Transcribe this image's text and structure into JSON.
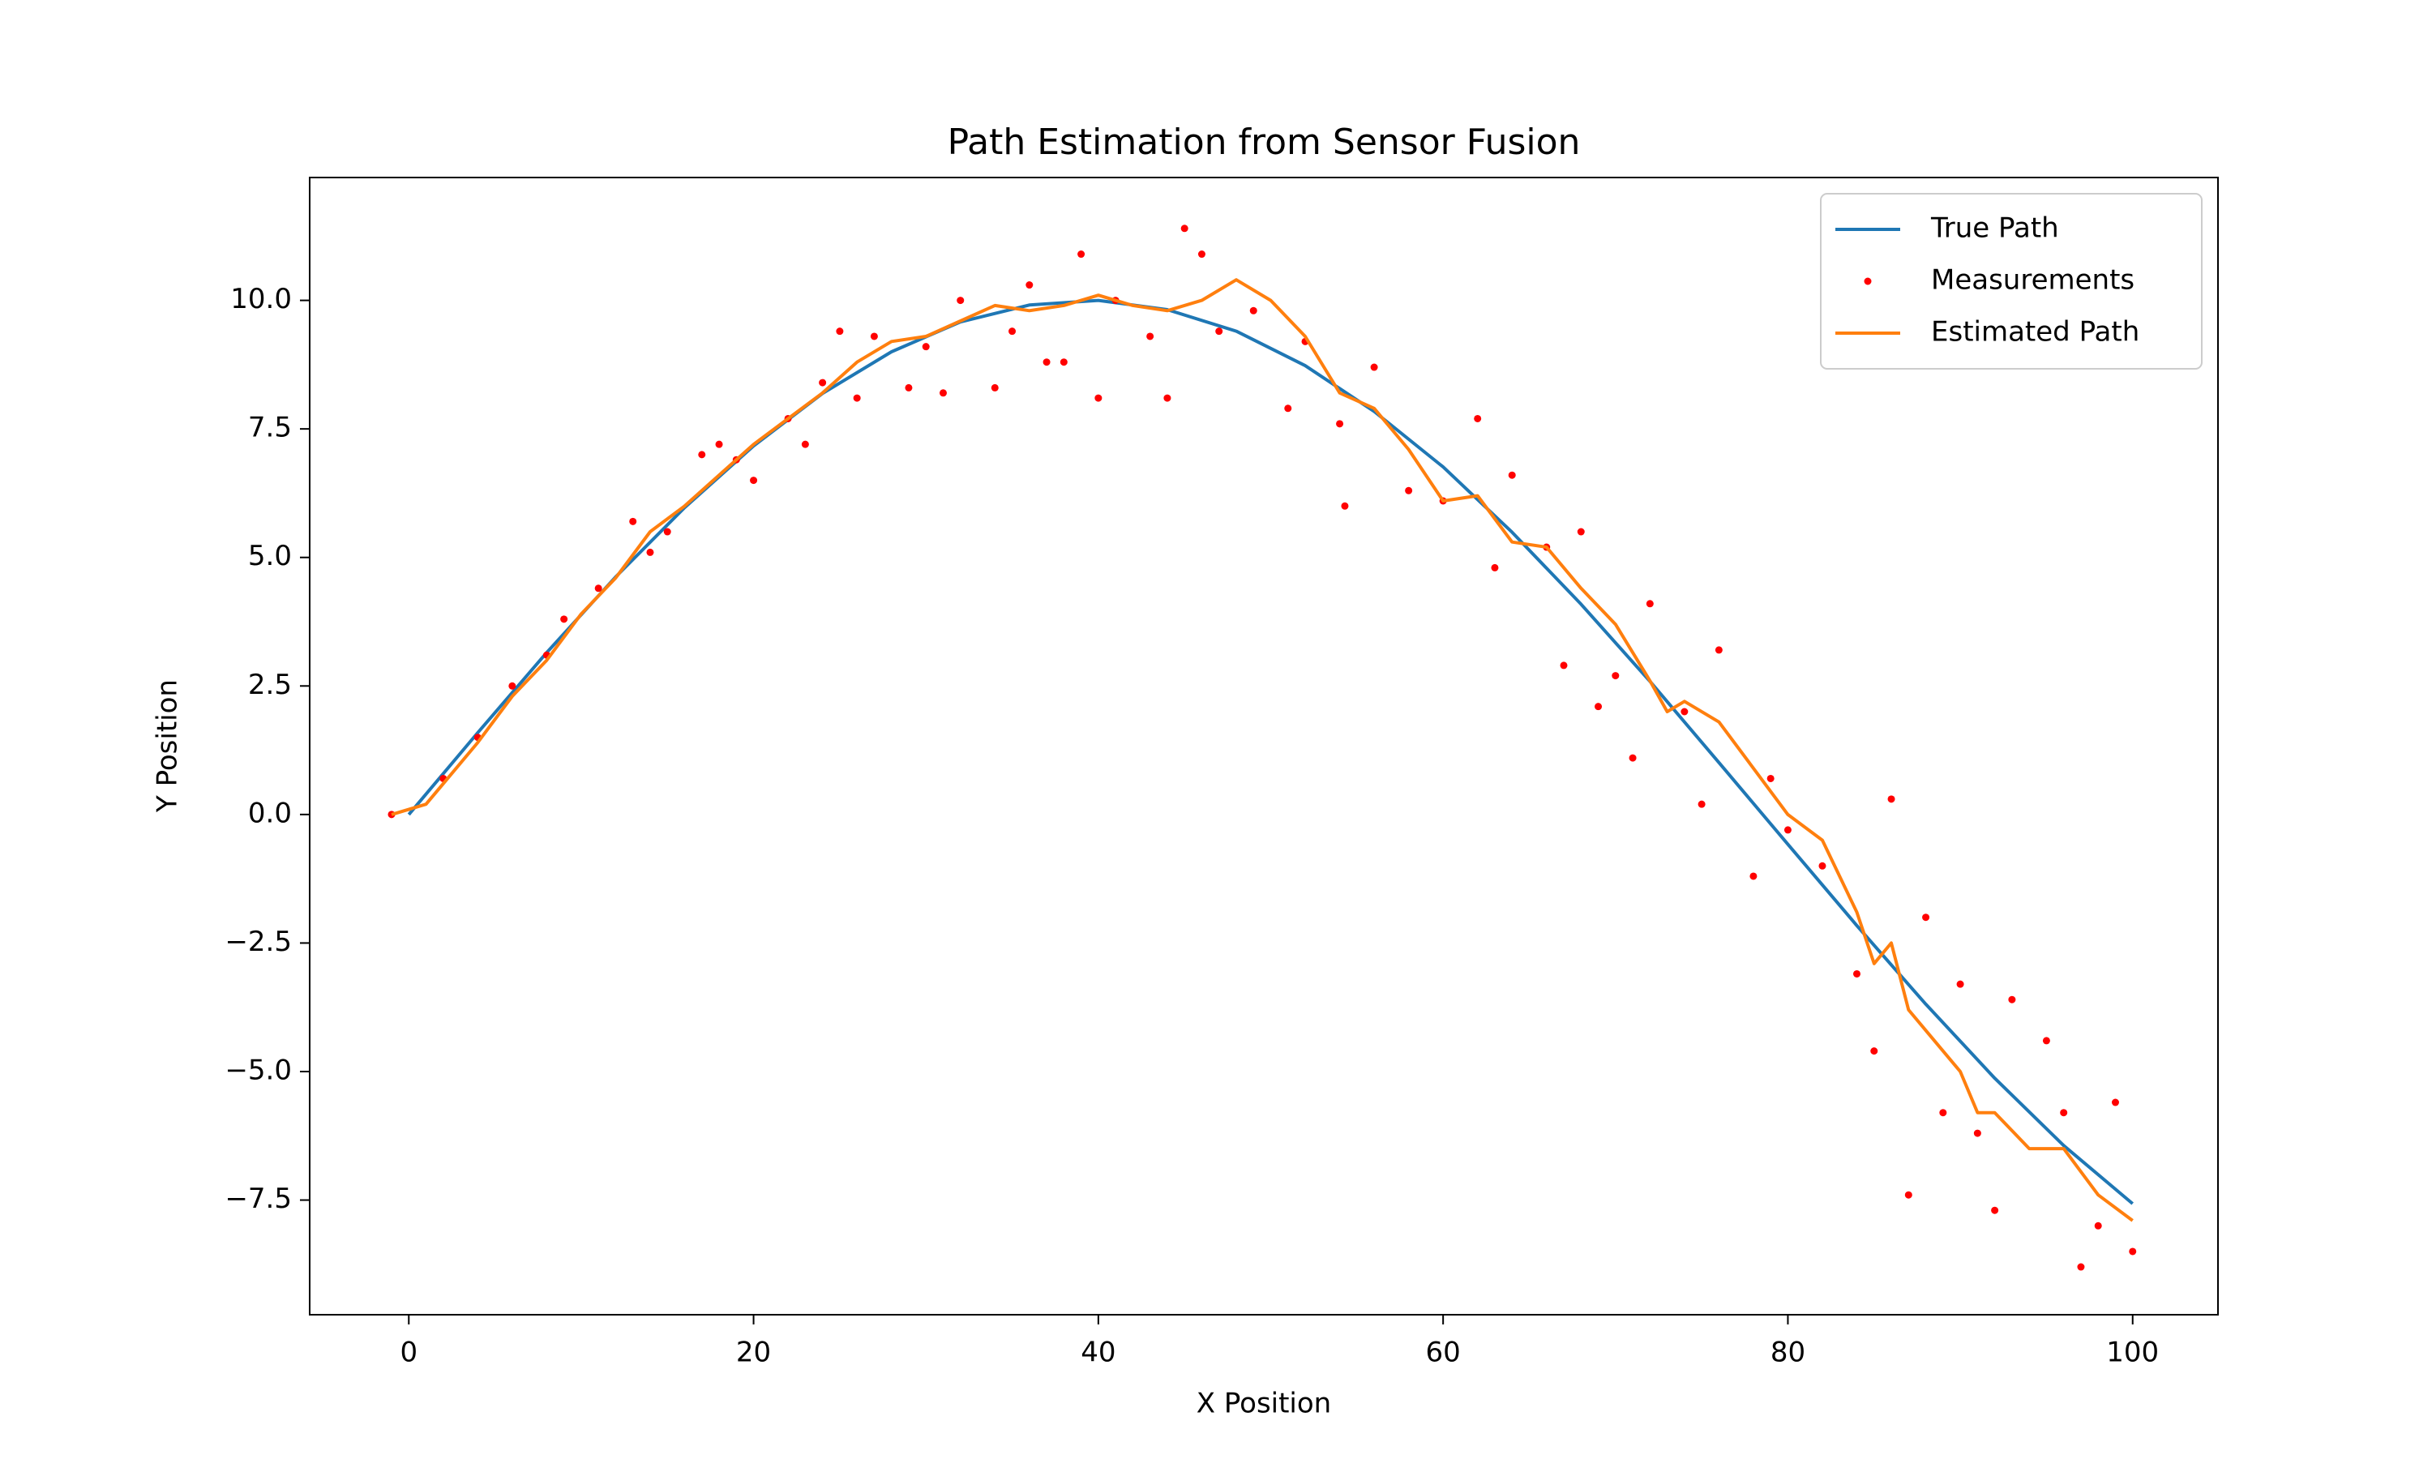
{
  "chart_data": {
    "type": "line",
    "title": "Path Estimation from Sensor Fusion",
    "xlabel": "X Position",
    "ylabel": "Y Position",
    "xlim": [
      -5.75,
      104.95
    ],
    "ylim": [
      -9.73,
      12.39
    ],
    "xticks": [
      0,
      20,
      40,
      60,
      80,
      100
    ],
    "yticks": [
      {
        "value": -7.5,
        "label": "−7.5"
      },
      {
        "value": -5,
        "label": "−5.0"
      },
      {
        "value": -2.5,
        "label": "−2.5"
      },
      {
        "value": 0,
        "label": "0.0"
      },
      2.5,
      {
        "value": 5,
        "label": "5.0"
      },
      7.5,
      {
        "value": 10,
        "label": "10.0"
      }
    ],
    "legend": "upper right",
    "series": [
      {
        "name": "True Path",
        "color": "#1f77b4",
        "style": "line",
        "x": [
          0,
          4,
          8,
          12,
          16,
          20,
          24,
          28,
          32,
          36,
          40,
          44,
          48,
          52,
          56,
          60,
          64,
          68,
          72,
          76,
          80,
          84,
          88,
          92,
          96,
          100
        ],
        "values": [
          0,
          1.59,
          3.15,
          4.62,
          5.97,
          7.17,
          8.19,
          9.0,
          9.58,
          9.91,
          10.0,
          9.82,
          9.4,
          8.73,
          7.84,
          6.76,
          5.49,
          4.09,
          2.59,
          1.01,
          -0.58,
          -2.16,
          -3.69,
          -5.13,
          -6.44,
          -7.57
        ]
      },
      {
        "name": "Measurements",
        "color": "#ff0000",
        "style": "points",
        "x": [
          -1,
          2,
          4,
          6,
          8,
          9,
          11,
          13,
          14,
          15,
          17,
          18,
          19,
          20,
          22,
          23,
          24,
          25,
          26,
          27,
          29,
          30,
          31,
          32,
          34,
          35,
          36,
          37,
          38,
          39,
          40,
          41,
          43,
          44,
          45,
          46,
          47,
          49,
          51,
          52,
          54,
          54.3,
          56,
          58,
          60,
          62,
          63,
          64,
          66,
          67,
          68,
          69,
          70,
          71,
          72,
          74,
          75,
          76,
          78,
          79,
          80,
          82,
          84,
          85,
          86,
          87,
          88,
          89,
          90,
          91,
          92,
          93,
          95,
          96,
          97,
          98,
          99,
          100
        ],
        "values": [
          0,
          0.7,
          1.5,
          2.5,
          3.1,
          3.8,
          4.4,
          5.7,
          5.1,
          5.5,
          7.0,
          7.2,
          6.9,
          6.5,
          7.7,
          7.2,
          8.4,
          9.4,
          8.1,
          9.3,
          8.3,
          9.1,
          8.2,
          10.0,
          8.3,
          9.4,
          10.3,
          8.8,
          8.8,
          10.9,
          8.1,
          10.0,
          9.3,
          8.1,
          11.4,
          10.9,
          9.4,
          9.8,
          7.9,
          9.2,
          7.6,
          6.0,
          8.7,
          6.3,
          6.1,
          7.7,
          4.8,
          6.6,
          5.2,
          2.9,
          5.5,
          2.1,
          2.7,
          1.1,
          4.1,
          2.0,
          0.2,
          3.2,
          -1.2,
          0.7,
          -0.3,
          -1.0,
          -3.1,
          -4.6,
          0.3,
          -7.4,
          -2.0,
          -5.8,
          -3.3,
          -6.2,
          -7.7,
          -3.6,
          -4.4,
          -5.8,
          -8.8,
          -8.0,
          -5.6,
          -8.5
        ]
      },
      {
        "name": "Estimated Path",
        "color": "#ff7f0e",
        "style": "line",
        "x": [
          -1,
          1,
          2,
          4,
          6,
          8,
          10,
          12,
          14,
          16,
          18,
          20,
          22,
          24,
          26,
          28,
          30,
          32,
          34,
          36,
          38,
          40,
          42,
          44,
          46,
          48,
          50,
          52,
          54,
          56,
          58,
          60,
          62,
          64,
          66,
          68,
          70,
          72,
          73,
          74,
          76,
          78,
          80,
          82,
          84,
          85,
          86,
          87,
          88,
          90,
          91,
          92,
          94,
          96,
          98,
          100
        ],
        "values": [
          0,
          0.2,
          0.6,
          1.4,
          2.3,
          3.0,
          3.9,
          4.6,
          5.5,
          6.0,
          6.6,
          7.2,
          7.7,
          8.2,
          8.8,
          9.2,
          9.3,
          9.6,
          9.9,
          9.8,
          9.9,
          10.1,
          9.9,
          9.8,
          10.0,
          10.4,
          10.0,
          9.3,
          8.2,
          7.9,
          7.1,
          6.1,
          6.2,
          5.3,
          5.2,
          4.4,
          3.7,
          2.6,
          2.0,
          2.2,
          1.8,
          0.9,
          0.0,
          -0.5,
          -1.9,
          -2.9,
          -2.5,
          -3.8,
          -4.2,
          -5.0,
          -5.8,
          -5.8,
          -6.5,
          -6.5,
          -7.4,
          -7.9
        ]
      }
    ]
  }
}
